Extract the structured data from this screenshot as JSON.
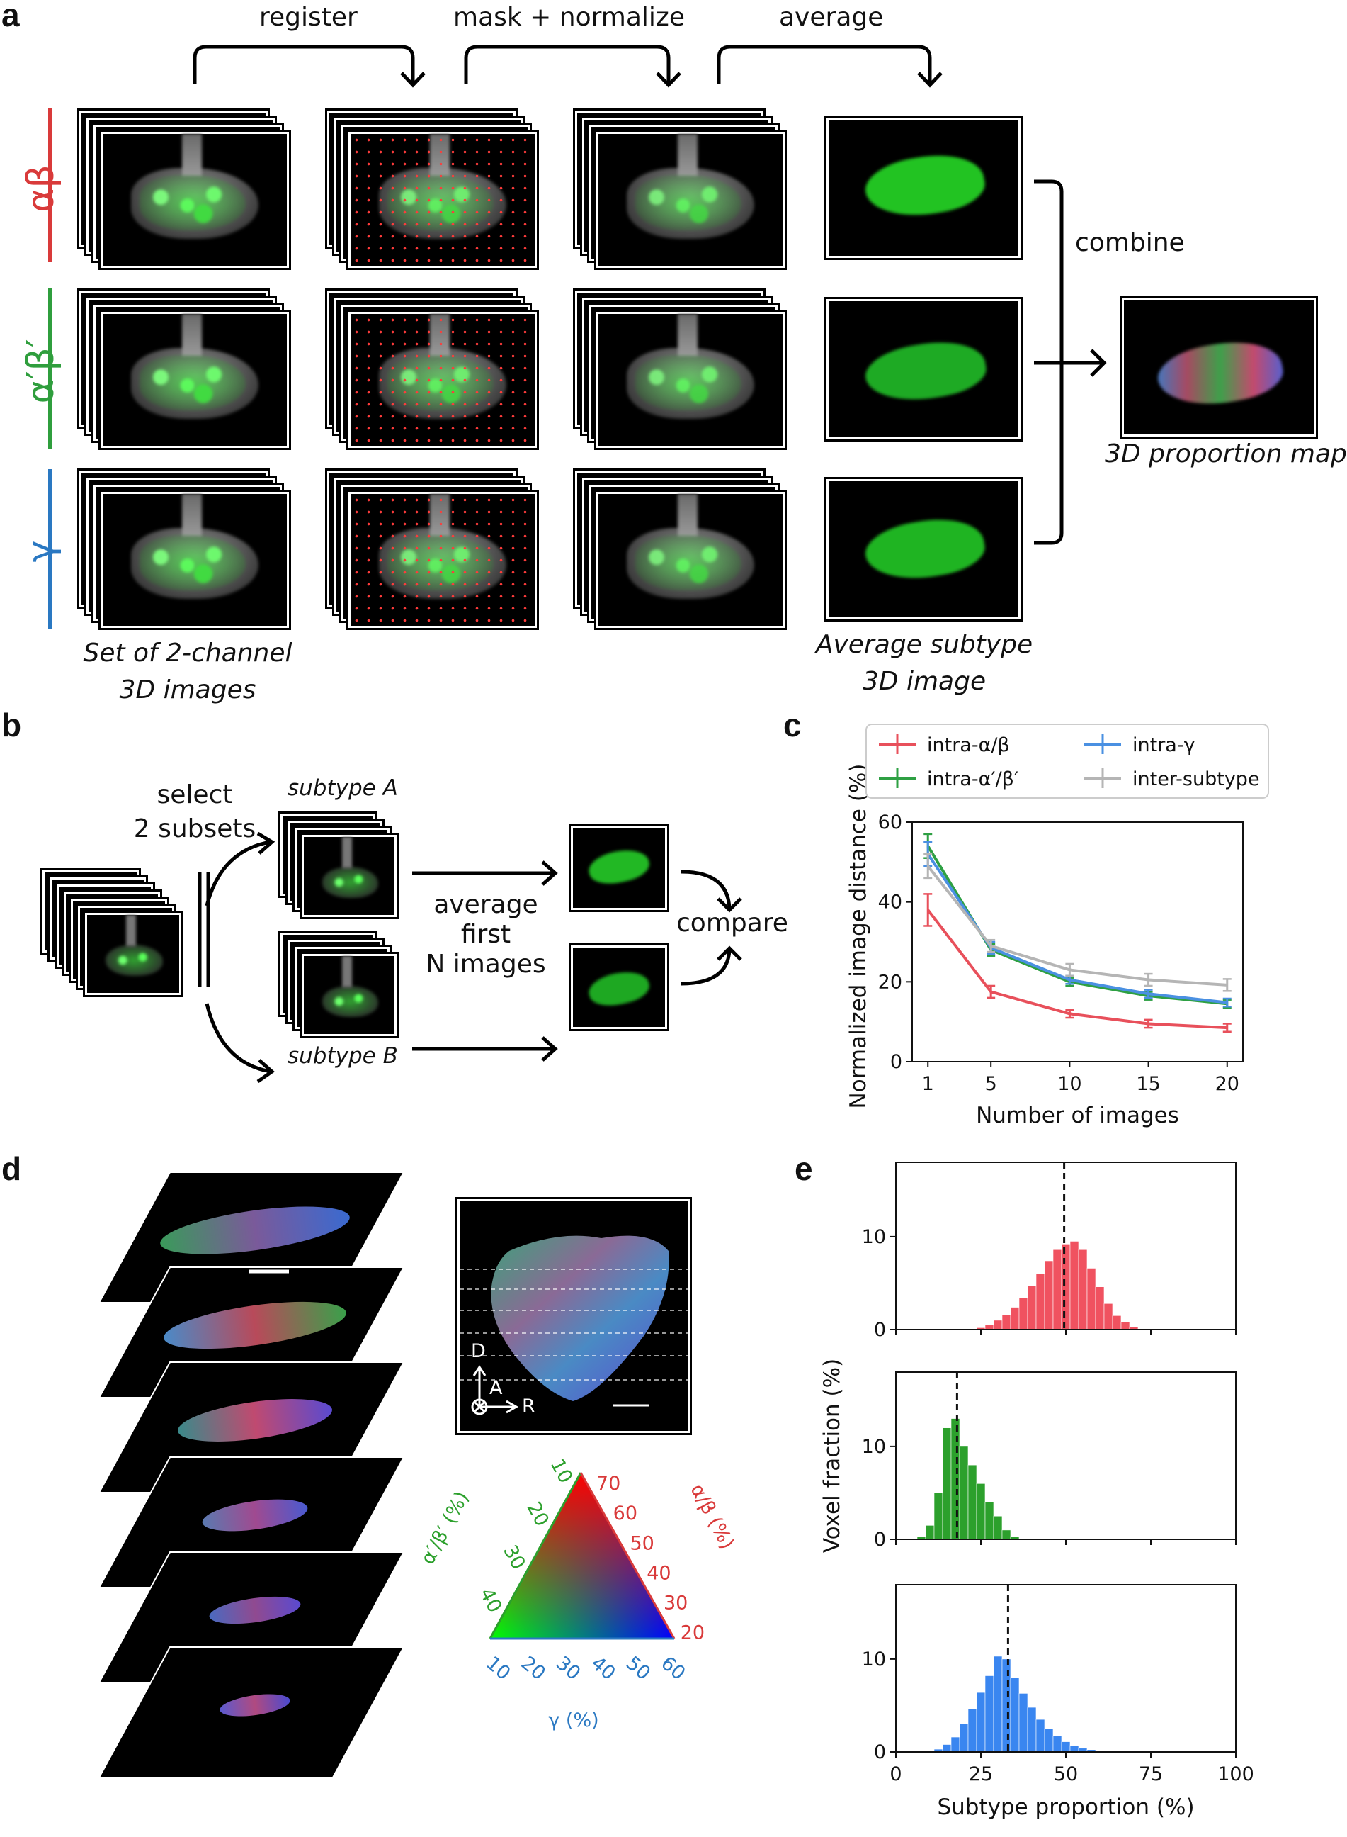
{
  "panels": {
    "a": "a",
    "b": "b",
    "c": "c",
    "d": "d",
    "e": "e"
  },
  "panel_a": {
    "steps": [
      "register",
      "mask + normalize",
      "average"
    ],
    "combine": "combine",
    "rows": [
      "αβ",
      "α′β′",
      "γ"
    ],
    "row_colors": [
      "#d93a3a",
      "#2f9e3d",
      "#2a78c2"
    ],
    "caption_set": "Set of 2-channel\n3D images",
    "caption_avg": "Average subtype\n3D image",
    "caption_map": "3D proportion map"
  },
  "panel_b": {
    "select": "select\n2 subsets",
    "subtype_a": "subtype A",
    "subtype_b": "subtype B",
    "average": "average first\nN images",
    "compare": "compare"
  },
  "chart_data": [
    {
      "panel": "c",
      "type": "line",
      "xlabel": "Number of images",
      "ylabel": "Normalized image distance (%)",
      "x": [
        1,
        5,
        10,
        15,
        20
      ],
      "xticks": [
        1,
        5,
        10,
        15,
        20
      ],
      "yticks": [
        0,
        20,
        40,
        60
      ],
      "xlim": [
        0,
        21
      ],
      "ylim": [
        0,
        60
      ],
      "legend_position": "top",
      "series": [
        {
          "name": "intra-α/β",
          "color": "#e8505b",
          "values": [
            38,
            17.5,
            12,
            9.5,
            8.5
          ],
          "err": [
            4,
            1.5,
            1,
            1,
            1
          ]
        },
        {
          "name": "intra-α′/β′",
          "color": "#2ea043",
          "values": [
            54,
            28,
            20,
            16.5,
            14.5
          ],
          "err": [
            3,
            1.5,
            1,
            1,
            1
          ]
        },
        {
          "name": "intra-γ",
          "color": "#4a90e2",
          "values": [
            52,
            28.5,
            20.5,
            17,
            14.8
          ],
          "err": [
            3,
            1.5,
            1,
            1,
            1
          ]
        },
        {
          "name": "inter-subtype",
          "color": "#b5b5b5",
          "values": [
            49,
            29,
            23,
            20.5,
            19.2
          ],
          "err": [
            3,
            1.5,
            1.5,
            1.5,
            1.5
          ]
        }
      ]
    },
    {
      "panel": "e",
      "type": "bar",
      "xlabel": "Subtype proportion (%)",
      "ylabel": "Voxel fraction (%)",
      "xticks": [
        0,
        25,
        50,
        75,
        100
      ],
      "yticks": [
        0,
        10
      ],
      "xlim": [
        0,
        100
      ],
      "ylim": [
        0,
        18
      ],
      "histograms": [
        {
          "color": "#f05260",
          "mean": 49.5,
          "bins": [
            [
              25,
              0.2
            ],
            [
              27.5,
              0.5
            ],
            [
              30,
              1
            ],
            [
              32.5,
              1.6
            ],
            [
              35,
              2.4
            ],
            [
              37.5,
              3.4
            ],
            [
              40,
              4.7
            ],
            [
              42.5,
              6
            ],
            [
              45,
              7.4
            ],
            [
              47.5,
              8.6
            ],
            [
              50,
              9.2
            ],
            [
              52.5,
              9.5
            ],
            [
              55,
              8.6
            ],
            [
              57.5,
              6.6
            ],
            [
              60,
              4.6
            ],
            [
              62.5,
              2.8
            ],
            [
              65,
              1.5
            ],
            [
              67.5,
              0.8
            ],
            [
              70,
              0.3
            ],
            [
              72.5,
              0.1
            ]
          ]
        },
        {
          "color": "#2ca02c",
          "mean": 18,
          "bins": [
            [
              7.5,
              0.3
            ],
            [
              10,
              1.5
            ],
            [
              12.5,
              5
            ],
            [
              15,
              12
            ],
            [
              17.5,
              13
            ],
            [
              20,
              10
            ],
            [
              22.5,
              8
            ],
            [
              25,
              6
            ],
            [
              27.5,
              4
            ],
            [
              30,
              2.5
            ],
            [
              32.5,
              1
            ],
            [
              35,
              0.3
            ]
          ]
        },
        {
          "color": "#3a86f0",
          "mean": 33,
          "bins": [
            [
              10,
              0.1
            ],
            [
              12.5,
              0.3
            ],
            [
              15,
              0.8
            ],
            [
              17.5,
              1.6
            ],
            [
              20,
              3
            ],
            [
              22.5,
              4.6
            ],
            [
              25,
              6.4
            ],
            [
              27.5,
              8.2
            ],
            [
              30,
              10.3
            ],
            [
              32.5,
              10
            ],
            [
              35,
              8
            ],
            [
              37.5,
              6.3
            ],
            [
              40,
              4.8
            ],
            [
              42.5,
              3.5
            ],
            [
              45,
              2.5
            ],
            [
              47.5,
              1.7
            ],
            [
              50,
              1.1
            ],
            [
              52.5,
              0.7
            ],
            [
              55,
              0.4
            ],
            [
              57.5,
              0.25
            ],
            [
              60,
              0.1
            ]
          ]
        }
      ]
    }
  ],
  "panel_d": {
    "axis_d": "D",
    "axis_a": "A",
    "axis_r": "R",
    "tri_left_label": "α′/β′ (%)",
    "tri_right_label": "α/β (%)",
    "tri_bottom_label": "γ (%)",
    "tri_left_ticks": [
      "10",
      "20",
      "30",
      "40"
    ],
    "tri_right_ticks": [
      "70",
      "60",
      "50",
      "40",
      "30",
      "20"
    ],
    "tri_bottom_ticks": [
      "10",
      "20",
      "30",
      "40",
      "50",
      "60"
    ]
  }
}
